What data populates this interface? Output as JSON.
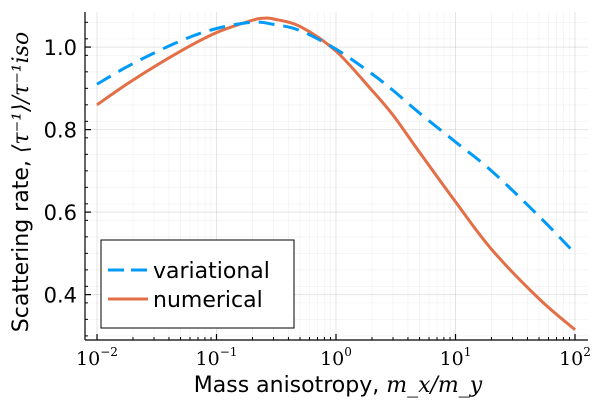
{
  "chart_data": {
    "type": "line",
    "xlabel": "Mass anisotropy, m_x/m_y",
    "xlabel_text": "Mass anisotropy, ",
    "xlabel_math": "m_x/m_y",
    "ylabel": "Scattering rate, ⟨τ⁻¹⟩/τ_iso⁻¹",
    "ylabel_text": "Scattering rate, ",
    "ylabel_math": "⟨τ⁻¹⟩/τ⁻¹iso",
    "x_scale": "log",
    "xlim": [
      0.01,
      100
    ],
    "ylim": [
      0.29,
      1.085
    ],
    "xtick_base": "10",
    "x_ticks": [
      {
        "value": 0.01,
        "exp": "−2"
      },
      {
        "value": 0.1,
        "exp": "−1"
      },
      {
        "value": 1,
        "exp": "0"
      },
      {
        "value": 10,
        "exp": "1"
      },
      {
        "value": 100,
        "exp": "2"
      }
    ],
    "y_ticks": [
      {
        "value": 0.4,
        "label": "0.4"
      },
      {
        "value": 0.6,
        "label": "0.6"
      },
      {
        "value": 0.8,
        "label": "0.8"
      },
      {
        "value": 1.0,
        "label": "1.0"
      }
    ],
    "grid": true,
    "legend_placement": "bottom-left",
    "series": [
      {
        "name": "variational",
        "color": "#009af9",
        "style": "dashed",
        "x": [
          0.01,
          0.02,
          0.05,
          0.1,
          0.2,
          0.3,
          0.5,
          1,
          2,
          3,
          5,
          10,
          20,
          50,
          100
        ],
        "y": [
          0.91,
          0.96,
          1.015,
          1.045,
          1.06,
          1.055,
          1.04,
          0.995,
          0.935,
          0.895,
          0.84,
          0.77,
          0.7,
          0.59,
          0.5
        ]
      },
      {
        "name": "numerical",
        "color": "#e26f46",
        "style": "solid",
        "x": [
          0.01,
          0.02,
          0.05,
          0.1,
          0.2,
          0.25,
          0.3,
          0.5,
          1,
          2,
          3,
          5,
          10,
          20,
          50,
          100
        ],
        "y": [
          0.86,
          0.92,
          0.99,
          1.035,
          1.065,
          1.07,
          1.068,
          1.05,
          0.99,
          0.895,
          0.835,
          0.745,
          0.625,
          0.51,
          0.39,
          0.315
        ]
      }
    ]
  }
}
